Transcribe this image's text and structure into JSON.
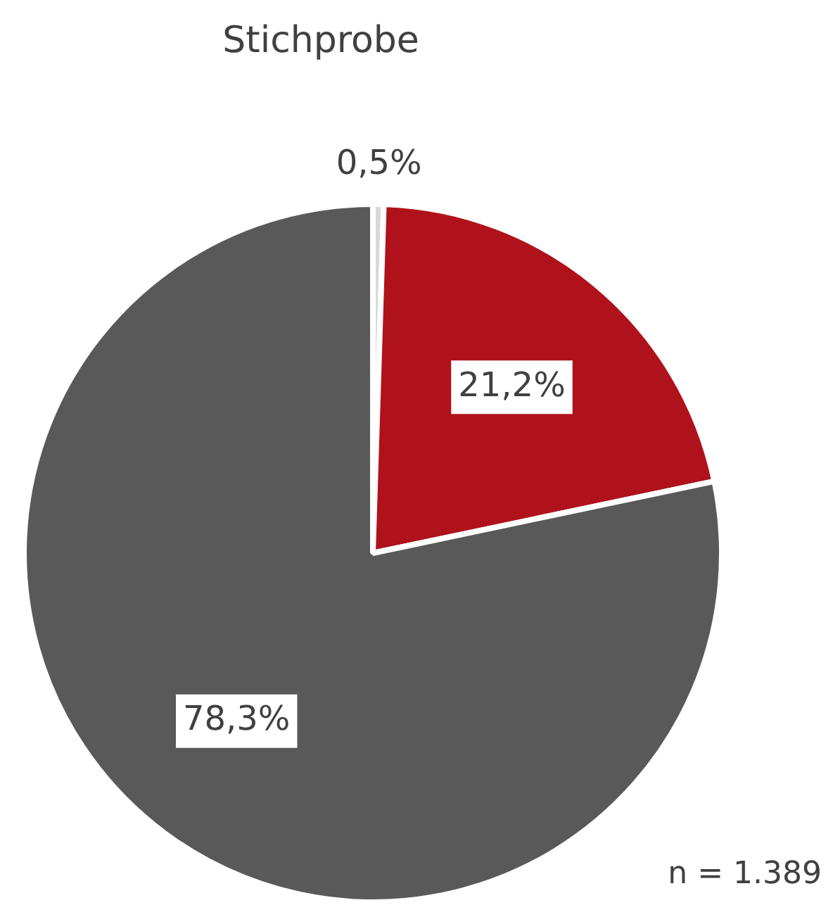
{
  "chart_data": {
    "type": "pie",
    "title": "Stichprobe",
    "categories": [
      null,
      null,
      null
    ],
    "values": [
      0.5,
      21.2,
      78.3
    ],
    "value_labels": [
      "0,5%",
      "21,2%",
      "78,3%"
    ],
    "colors": [
      "#d9d9d9",
      "#b0121b",
      "#595959"
    ],
    "legend": false,
    "annotations": [
      "n = 1.389"
    ]
  }
}
